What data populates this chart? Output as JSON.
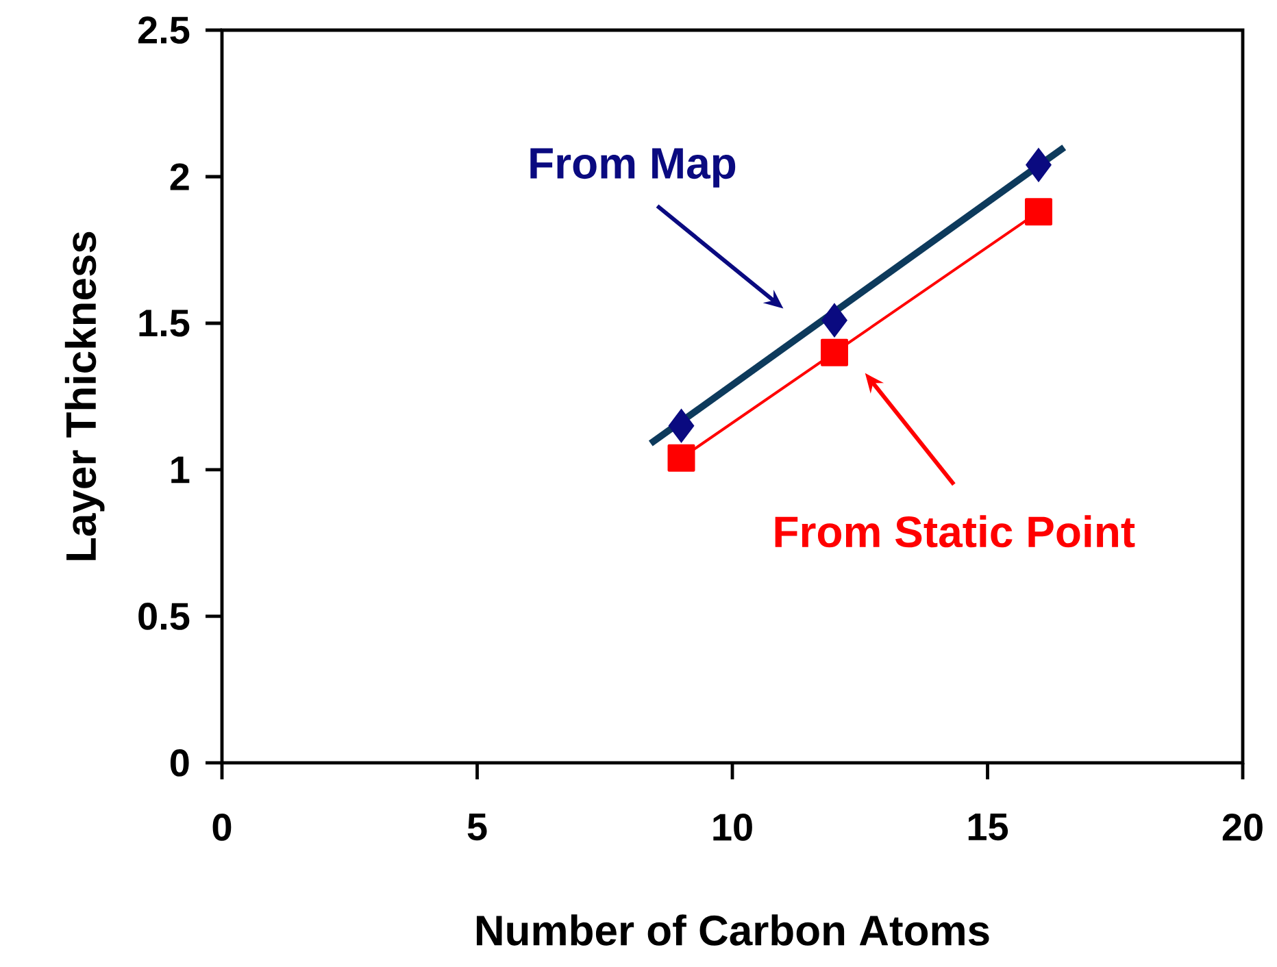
{
  "chart_data": {
    "type": "scatter",
    "xlabel": "Number of Carbon Atoms",
    "ylabel": "Layer Thickness",
    "xlim": [
      0,
      20
    ],
    "ylim": [
      0,
      2.5
    ],
    "xticks": [
      0,
      5,
      10,
      15,
      20
    ],
    "yticks": [
      0,
      0.5,
      1,
      1.5,
      2,
      2.5
    ],
    "series": [
      {
        "marker": "diamond",
        "color": "#0a0a80",
        "x": [
          9,
          12,
          16
        ],
        "values": [
          1.15,
          1.51,
          2.04
        ]
      },
      {
        "type": "line",
        "marker": "square",
        "color": "#ff0000",
        "x": [
          9,
          12,
          16
        ],
        "values": [
          1.04,
          1.4,
          1.88
        ]
      },
      {
        "type": "line",
        "marker": "none",
        "color": "#0d3a5c",
        "x": [
          8.4,
          16.5
        ],
        "values": [
          1.09,
          2.1
        ]
      }
    ],
    "annotations": [
      "From Map",
      "From Static Point"
    ]
  }
}
